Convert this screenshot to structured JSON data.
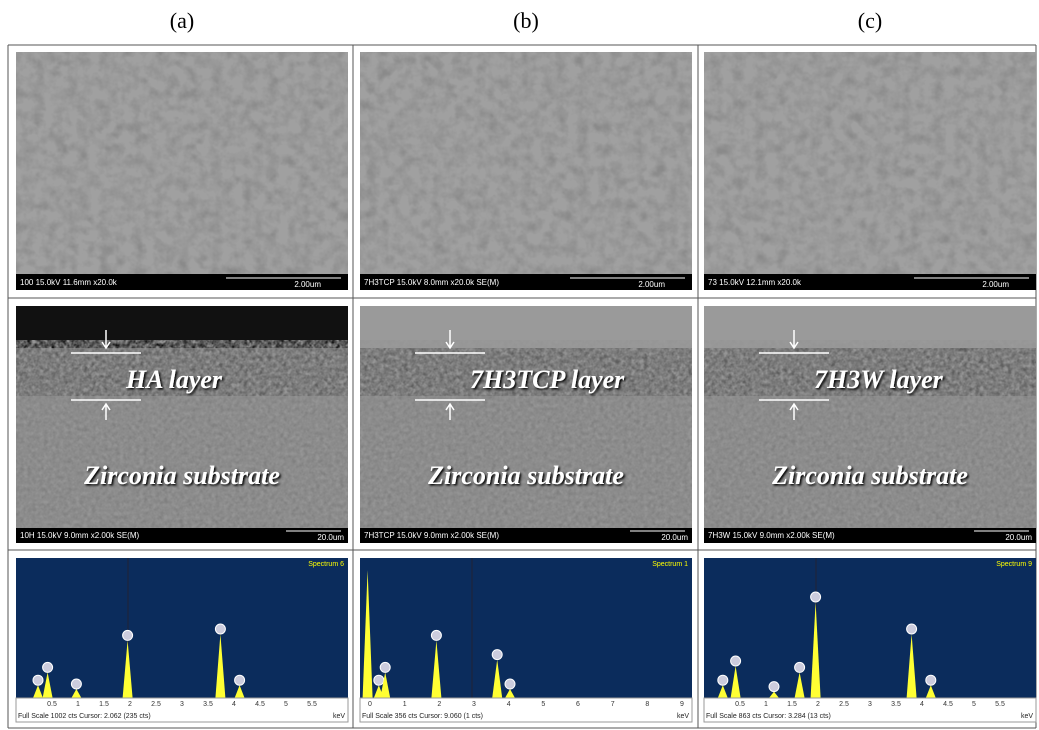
{
  "columns": [
    {
      "label": "(a)",
      "surface": {
        "info": "100 15.0kV 11.6mm x20.0k",
        "scale": "2.00um"
      },
      "cross_section": {
        "info": "10H 15.0kV 9.0mm x2.00k SE(M)",
        "scale": "20.0um",
        "layer": "HA layer",
        "substrate": "Zirconia substrate"
      },
      "spectrum": {
        "title": "Spectrum 6",
        "footer": "Full Scale 1002 cts Cursor: 2.062  (235 cts)",
        "unit": "keV",
        "ticks": [
          "0.5",
          "1",
          "1.5",
          "2",
          "2.5",
          "3",
          "3.5",
          "4",
          "4.5",
          "5",
          "5.5"
        ]
      }
    },
    {
      "label": "(b)",
      "surface": {
        "info": "7H3TCP 15.0kV 8.0mm x20.0k SE(M)",
        "scale": "2.00um"
      },
      "cross_section": {
        "info": "7H3TCP 15.0kV 9.0mm x2.00k SE(M)",
        "scale": "20.0um",
        "layer": "7H3TCP layer",
        "substrate": "Zirconia substrate"
      },
      "spectrum": {
        "title": "Spectrum 1",
        "footer": "Full Scale 356 cts Cursor: 9.060  (1 cts)",
        "unit": "keV",
        "ticks": [
          "0",
          "1",
          "2",
          "3",
          "4",
          "5",
          "6",
          "7",
          "8",
          "9"
        ]
      }
    },
    {
      "label": "(c)",
      "surface": {
        "info": "73 15.0kV 12.1mm x20.0k",
        "scale": "2.00um"
      },
      "cross_section": {
        "info": "7H3W 15.0kV 9.0mm x2.00k SE(M)",
        "scale": "20.0um",
        "layer": "7H3W layer",
        "substrate": "Zirconia substrate"
      },
      "spectrum": {
        "title": "Spectrum 9",
        "footer": "Full Scale 863 cts Cursor: 3.284  (13 cts)",
        "unit": "keV",
        "ticks": [
          "0.5",
          "1",
          "1.5",
          "2",
          "2.5",
          "3",
          "3.5",
          "4",
          "4.5",
          "5",
          "5.5"
        ]
      }
    }
  ]
}
